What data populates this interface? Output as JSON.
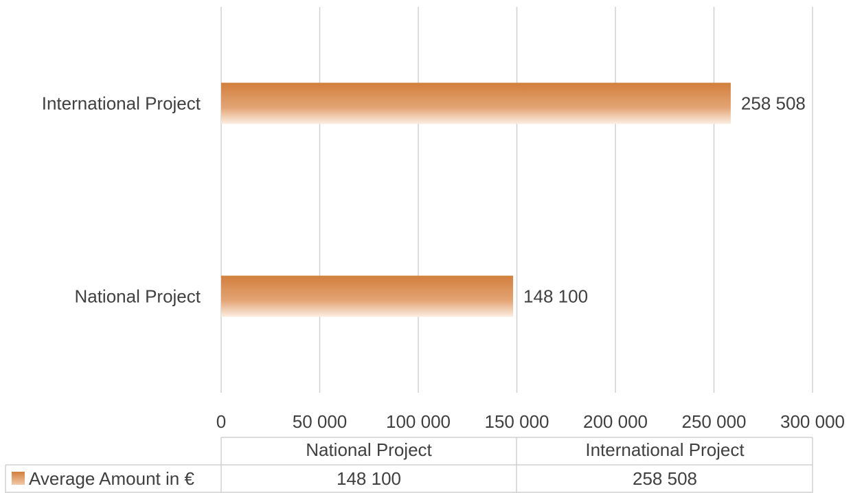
{
  "chart_data": {
    "type": "bar",
    "orientation": "horizontal",
    "categories": [
      "National Project",
      "International Project"
    ],
    "series": [
      {
        "name": "Average Amount in €",
        "values": [
          148100,
          258508
        ],
        "value_labels": [
          "148 100",
          "258 508"
        ],
        "color": "#d27f3c"
      }
    ],
    "xlim": [
      0,
      300000
    ],
    "x_ticks": [
      0,
      50000,
      100000,
      150000,
      200000,
      250000,
      300000
    ],
    "x_tick_labels": [
      "0",
      "50 000",
      "100 000",
      "150 000",
      "200 000",
      "250 000",
      "300 000"
    ],
    "grid": true,
    "data_table": {
      "headers": [
        "National Project",
        "International Project"
      ],
      "row_label": "Average Amount in €",
      "row_values": [
        "148 100",
        "258 508"
      ]
    },
    "colors": {
      "bar_top": "#d27f3c",
      "bar_bottom": "#fbe9d9",
      "grid": "#d0d0d0",
      "text": "#404040"
    }
  }
}
